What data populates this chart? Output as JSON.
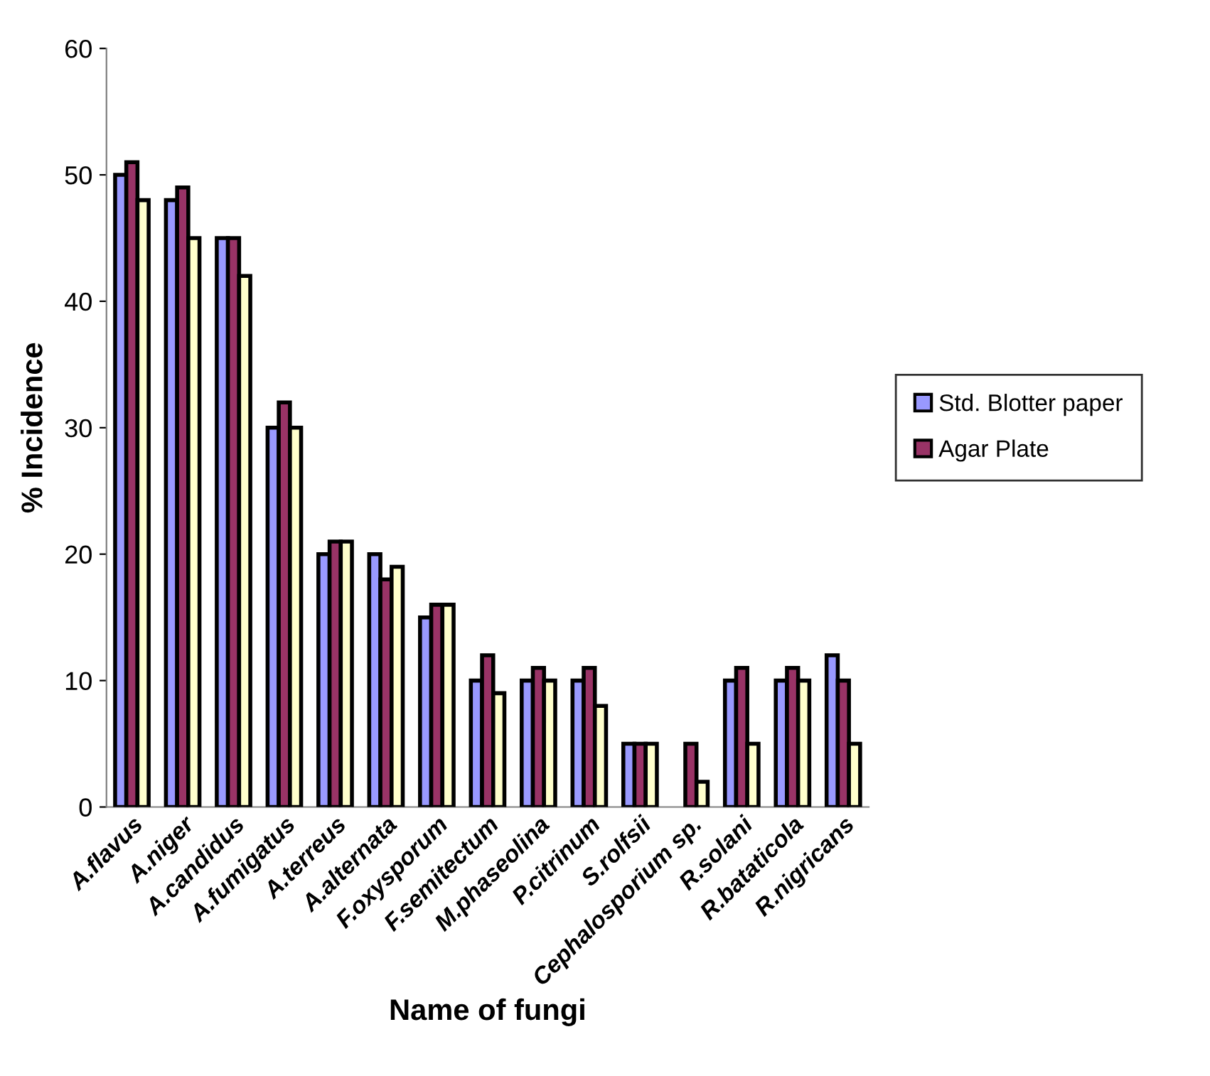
{
  "chart_data": {
    "type": "bar",
    "xlabel": "Name of fungi",
    "ylabel": "% Incidence",
    "categories": [
      "A.flavus",
      "A.niger",
      "A.candidus",
      "A.fumigatus",
      "A.terreus",
      "A.alternata",
      "F.oxysporum",
      "F.semitectum",
      "M.phaseolina",
      "P.citrinum",
      "S.rolfsii",
      "Cephalosporium sp.",
      "R.solani",
      "R.bataticola",
      "R.nigricans"
    ],
    "series": [
      {
        "name": "Std. Blotter paper",
        "color": "#9999ff",
        "values": [
          50,
          48,
          45,
          30,
          20,
          20,
          15,
          10,
          10,
          10,
          5,
          null,
          10,
          10,
          12
        ]
      },
      {
        "name": "Agar Plate",
        "color": "#993366",
        "values": [
          51,
          49,
          45,
          32,
          21,
          18,
          16,
          12,
          11,
          11,
          5,
          5,
          11,
          11,
          10
        ]
      },
      {
        "color": "#ffffcc",
        "values": [
          48,
          45,
          42,
          30,
          21,
          19,
          16,
          9,
          10,
          8,
          5,
          2,
          5,
          10,
          5
        ]
      }
    ],
    "ylim": [
      0,
      60
    ],
    "yticks": [
      0,
      10,
      20,
      30,
      40,
      50,
      60
    ],
    "grid": false,
    "legend": "right"
  }
}
